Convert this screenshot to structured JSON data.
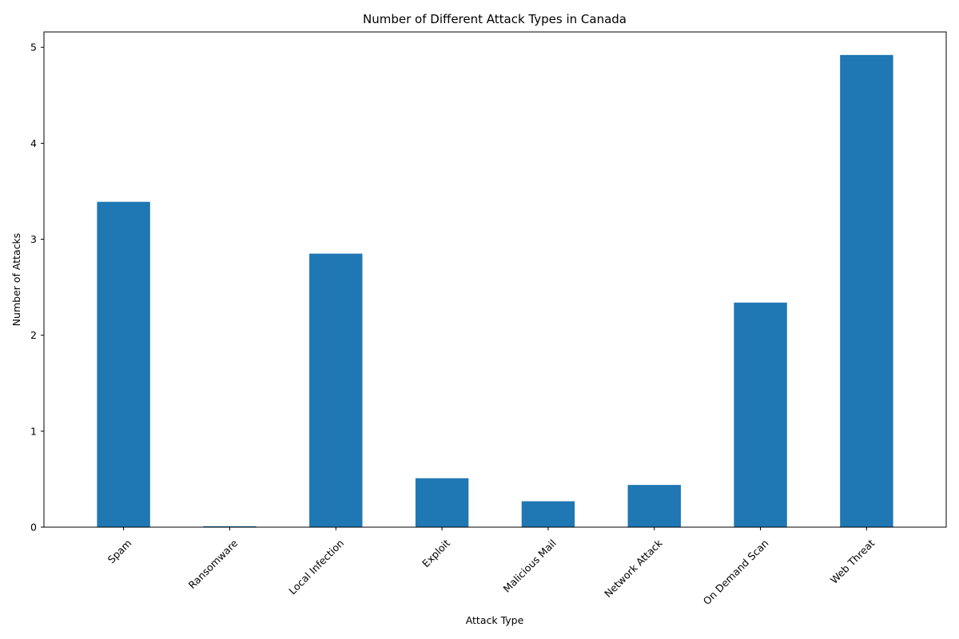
{
  "chart_data": {
    "type": "bar",
    "title": "Number of Different Attack Types in Canada",
    "xlabel": "Attack Type",
    "ylabel": "Number of Attacks",
    "categories": [
      "Spam",
      "Ransomware",
      "Local Infection",
      "Exploit",
      "Malicious Mail",
      "Network Attack",
      "On Demand Scan",
      "Web Threat"
    ],
    "values": [
      3.39,
      0.01,
      2.85,
      0.51,
      0.27,
      0.44,
      2.34,
      4.92
    ],
    "ylim": [
      0,
      5.16
    ],
    "yticks": [
      0,
      1,
      2,
      3,
      4,
      5
    ],
    "bar_color": "#1f77b4",
    "grid": false,
    "legend": "none"
  }
}
